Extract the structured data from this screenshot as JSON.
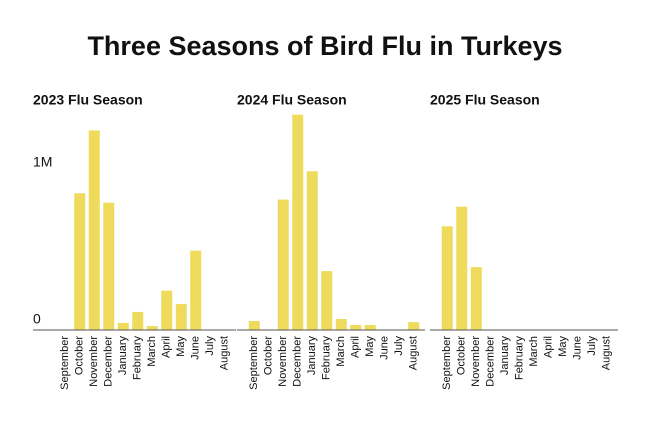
{
  "title": "Three Seasons of Bird Flu in Turkeys",
  "chart_data": [
    {
      "type": "bar",
      "title": "2023 Flu Season",
      "categories": [
        "September",
        "October",
        "November",
        "December",
        "January",
        "February",
        "March",
        "April",
        "May",
        "June",
        "July",
        "August"
      ],
      "values": [
        0,
        870000,
        1270000,
        810000,
        45000,
        115000,
        25000,
        250000,
        165000,
        505000,
        0,
        0
      ],
      "color": "#eedb5c",
      "ylim": [
        0,
        1400000
      ],
      "yticks": [
        0,
        {
          "value": 1000000,
          "label": "1M"
        }
      ]
    },
    {
      "type": "bar",
      "title": "2024 Flu Season",
      "categories": [
        "September",
        "October",
        "November",
        "December",
        "January",
        "February",
        "March",
        "April",
        "May",
        "June",
        "July",
        "August"
      ],
      "values": [
        57000,
        0,
        830000,
        1370000,
        1010000,
        375000,
        70000,
        32000,
        32000,
        0,
        0,
        50000
      ],
      "color": "#eedb5c",
      "ylim": [
        0,
        1400000
      ]
    },
    {
      "type": "bar",
      "title": "2025 Flu Season",
      "categories": [
        "September",
        "October",
        "November",
        "December",
        "January",
        "February",
        "March",
        "April",
        "May",
        "June",
        "July",
        "August"
      ],
      "values": [
        660000,
        785000,
        400000,
        null,
        null,
        null,
        null,
        null,
        null,
        null,
        null,
        null
      ],
      "color": "#eedb5c",
      "ylim": [
        0,
        1400000
      ]
    }
  ]
}
